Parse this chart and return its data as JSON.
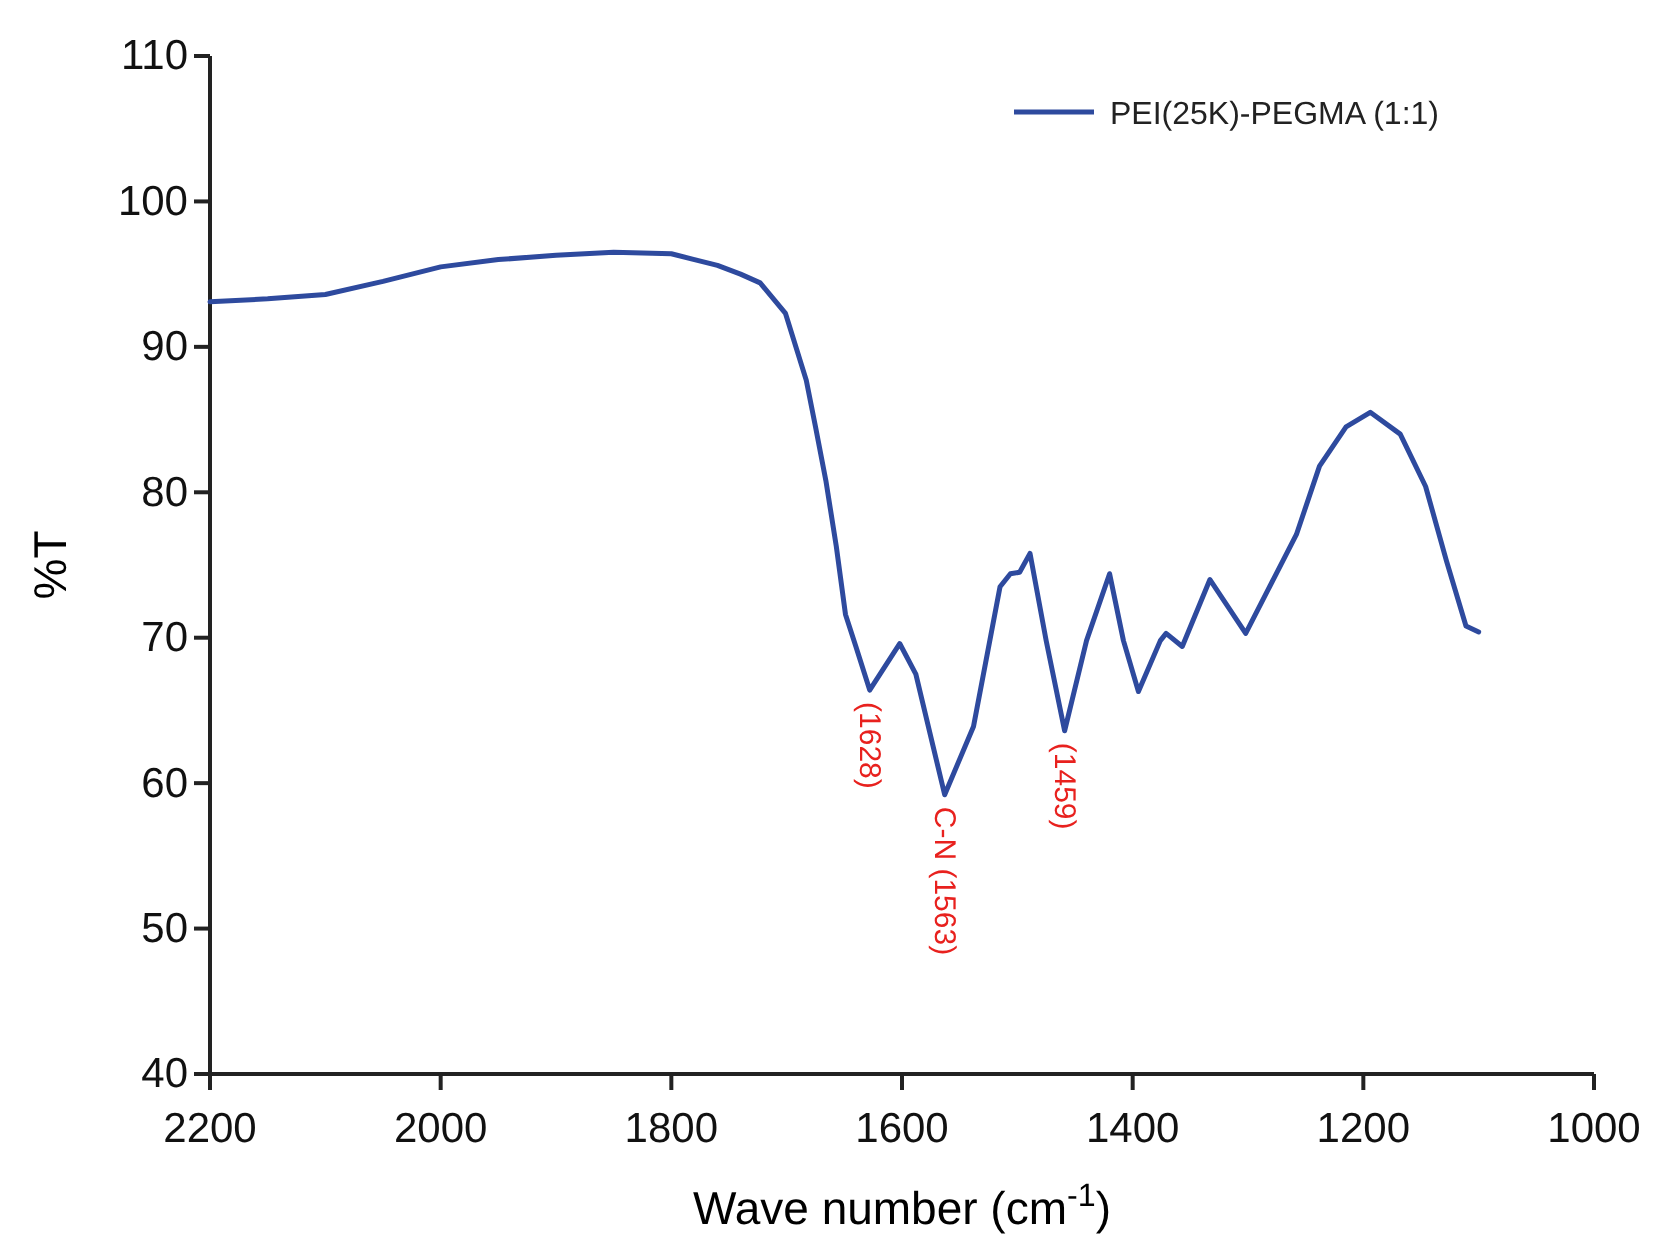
{
  "chart_data": {
    "type": "line",
    "xlabel": "Wave number (cm$^{-1}$)",
    "ylabel": "%T",
    "xlim": [
      2200,
      1000
    ],
    "xticks": [
      2200,
      2000,
      1800,
      1600,
      1400,
      1200,
      1000
    ],
    "ylim": [
      40,
      110
    ],
    "yticks": [
      40,
      50,
      60,
      70,
      80,
      90,
      100,
      110
    ],
    "legend": "top right",
    "grid": false,
    "line_style": "solid",
    "marker": "none",
    "x": [
      2200,
      2150,
      2100,
      2050,
      2000,
      1950,
      1900,
      1850,
      1800,
      1780,
      1760,
      1740,
      1723,
      1701,
      1683,
      1675,
      1666,
      1657,
      1649,
      1640,
      1628,
      1602,
      1588,
      1563,
      1538,
      1515,
      1506,
      1498,
      1489,
      1475,
      1459,
      1440,
      1420,
      1408,
      1395,
      1376,
      1371,
      1357,
      1333,
      1302,
      1258,
      1238,
      1215,
      1194,
      1168,
      1146,
      1128,
      1111,
      1100
    ],
    "series": [
      {
        "name": "PEI(25K)-PEGMA (1:1)",
        "color": "#2e4a9e",
        "values": [
          93.1,
          93.3,
          93.6,
          94.5,
          95.5,
          96.0,
          96.3,
          96.5,
          96.4,
          96.0,
          95.6,
          95.0,
          94.4,
          92.3,
          87.7,
          84.5,
          80.8,
          76.3,
          71.6,
          69.4,
          66.4,
          69.6,
          67.5,
          59.2,
          63.9,
          73.5,
          74.4,
          74.5,
          75.8,
          69.8,
          63.6,
          69.8,
          74.4,
          69.8,
          66.3,
          69.8,
          70.3,
          69.4,
          74.0,
          70.3,
          77.1,
          81.8,
          84.5,
          85.5,
          84.0,
          80.4,
          75.3,
          70.8,
          70.4
        ]
      }
    ],
    "annotations": [
      {
        "text": "(1628)",
        "x": 1628,
        "y": 66.4
      },
      {
        "text": "C-N (1563)",
        "x": 1563,
        "y": 59.2
      },
      {
        "text": "(1459)",
        "x": 1459,
        "y": 63.6
      }
    ]
  }
}
